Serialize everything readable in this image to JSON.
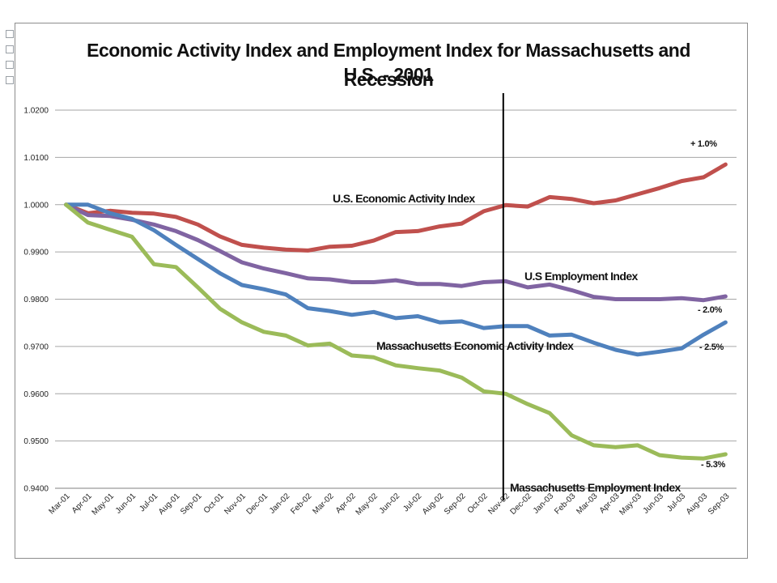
{
  "chart_data": {
    "type": "line",
    "title": "Economic Activity Index and Employment Index for Massachusetts and U.S. - 2001 Recession",
    "title_line1": "Economic Activity Index and Employment Index for Massachusetts and U.S. - 2001",
    "title_line2": "Recession",
    "categories": [
      "Mar-01",
      "Apr-01",
      "May-01",
      "Jun-01",
      "Jul-01",
      "Aug-01",
      "Sep-01",
      "Oct-01",
      "Nov-01",
      "Dec-01",
      "Jan-02",
      "Feb-02",
      "Mar-02",
      "Apr-02",
      "May-02",
      "Jun-02",
      "Jul-02",
      "Aug-02",
      "Sep-02",
      "Oct-02",
      "Nov-02",
      "Dec-02",
      "Jan-03",
      "Feb-03",
      "Mar-03",
      "Apr-03",
      "May-03",
      "Jun-03",
      "Jul-03",
      "Aug-03",
      "Sep-03"
    ],
    "ylim": [
      0.94,
      1.02
    ],
    "yticks": [
      "0.9400",
      "0.9500",
      "0.9600",
      "0.9700",
      "0.9800",
      "0.9900",
      "1.0000",
      "1.0100",
      "1.0200"
    ],
    "grid": true,
    "vline_category": "Nov-02",
    "series": [
      {
        "name": "U.S. Economic Activity Index",
        "color": "#c0504d",
        "values": [
          1.0,
          0.9982,
          0.9987,
          0.9983,
          0.9981,
          0.9974,
          0.9958,
          0.9933,
          0.9915,
          0.9909,
          0.9905,
          0.9903,
          0.9911,
          0.9913,
          0.9924,
          0.9942,
          0.9944,
          0.9954,
          0.996,
          0.9986,
          0.9999,
          0.9996,
          1.0016,
          1.0012,
          1.0003,
          1.0009,
          1.0022,
          1.0035,
          1.005,
          1.0058,
          1.0085
        ]
      },
      {
        "name": "U.S Employment Index",
        "color": "#8064a2",
        "values": [
          1.0,
          0.9978,
          0.9976,
          0.9968,
          0.9958,
          0.9944,
          0.9925,
          0.9902,
          0.9878,
          0.9865,
          0.9855,
          0.9844,
          0.9842,
          0.9836,
          0.9836,
          0.984,
          0.9832,
          0.9832,
          0.9828,
          0.9836,
          0.9838,
          0.9825,
          0.9831,
          0.9819,
          0.9805,
          0.98,
          0.98,
          0.98,
          0.9802,
          0.9798,
          0.9806
        ]
      },
      {
        "name": "Massachusetts Economic Activity Index",
        "color": "#4f81bd",
        "values": [
          1.0,
          1.0,
          0.9982,
          0.997,
          0.9946,
          0.9915,
          0.9885,
          0.9855,
          0.983,
          0.9821,
          0.981,
          0.9781,
          0.9775,
          0.9767,
          0.9773,
          0.976,
          0.9764,
          0.9751,
          0.9753,
          0.9739,
          0.9743,
          0.9743,
          0.9723,
          0.9725,
          0.9708,
          0.9693,
          0.9683,
          0.9689,
          0.9696,
          0.9725,
          0.9751
        ]
      },
      {
        "name": "Massachusetts Employment Index",
        "color": "#9bbb59",
        "values": [
          1.0,
          0.9962,
          0.9947,
          0.9932,
          0.9874,
          0.9868,
          0.9825,
          0.978,
          0.9751,
          0.9731,
          0.9723,
          0.9702,
          0.9706,
          0.9681,
          0.9677,
          0.966,
          0.9654,
          0.9649,
          0.9634,
          0.9605,
          0.96,
          0.9578,
          0.9559,
          0.9512,
          0.9491,
          0.9487,
          0.9491,
          0.947,
          0.9465,
          0.9463,
          0.9472
        ]
      }
    ],
    "annotations": {
      "us_econ_label": "U.S. Economic Activity Index",
      "us_emp_label": "U.S Employment Index",
      "ma_econ_label": "Massachusetts Economic Activity Index",
      "ma_emp_label": "Massachusetts Employment Index",
      "us_econ_pct": "+ 1.0%",
      "us_emp_pct": "- 2.0%",
      "ma_econ_pct": "- 2.5%",
      "ma_emp_pct": "- 5.3%"
    }
  }
}
